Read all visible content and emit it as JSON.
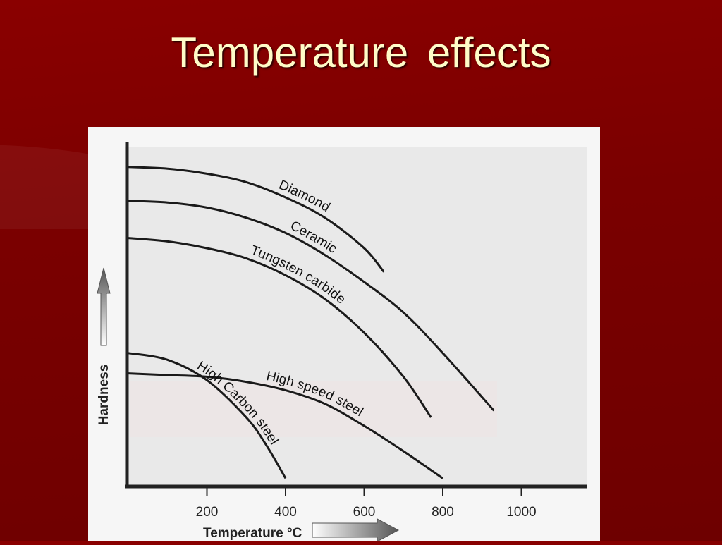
{
  "slide": {
    "title": "Temperature  effects"
  },
  "chart_data": {
    "type": "line",
    "title": "",
    "xlabel": "Temperature °C",
    "ylabel": "Hardness",
    "x_ticks": [
      200,
      400,
      600,
      800,
      1000
    ],
    "xlim": [
      0,
      1150
    ],
    "ylim": [
      0,
      100
    ],
    "grid": false,
    "legend": "labels on curves",
    "series": [
      {
        "name": "Diamond",
        "points": [
          [
            0,
            94
          ],
          [
            100,
            93.5
          ],
          [
            200,
            92
          ],
          [
            300,
            89.5
          ],
          [
            400,
            85
          ],
          [
            500,
            79
          ],
          [
            600,
            70
          ],
          [
            650,
            63
          ]
        ]
      },
      {
        "name": "Ceramic",
        "points": [
          [
            0,
            84
          ],
          [
            100,
            83.5
          ],
          [
            200,
            82
          ],
          [
            300,
            79
          ],
          [
            400,
            74.5
          ],
          [
            500,
            68
          ],
          [
            600,
            60
          ],
          [
            700,
            51
          ],
          [
            800,
            39
          ],
          [
            930,
            22
          ]
        ]
      },
      {
        "name": "Tungsten carbide",
        "points": [
          [
            0,
            73
          ],
          [
            100,
            72
          ],
          [
            200,
            70
          ],
          [
            300,
            67
          ],
          [
            400,
            62
          ],
          [
            500,
            55
          ],
          [
            600,
            45
          ],
          [
            700,
            32
          ],
          [
            770,
            20
          ]
        ]
      },
      {
        "name": "High speed steel",
        "points": [
          [
            0,
            33
          ],
          [
            100,
            32.5
          ],
          [
            200,
            32
          ],
          [
            300,
            30.5
          ],
          [
            400,
            28
          ],
          [
            500,
            24
          ],
          [
            600,
            17.5
          ],
          [
            700,
            10
          ],
          [
            800,
            2
          ]
        ]
      },
      {
        "name": "High Carbon steel",
        "points": [
          [
            0,
            39
          ],
          [
            100,
            37
          ],
          [
            200,
            31
          ],
          [
            300,
            20
          ],
          [
            350,
            12
          ],
          [
            400,
            2
          ]
        ]
      }
    ]
  }
}
